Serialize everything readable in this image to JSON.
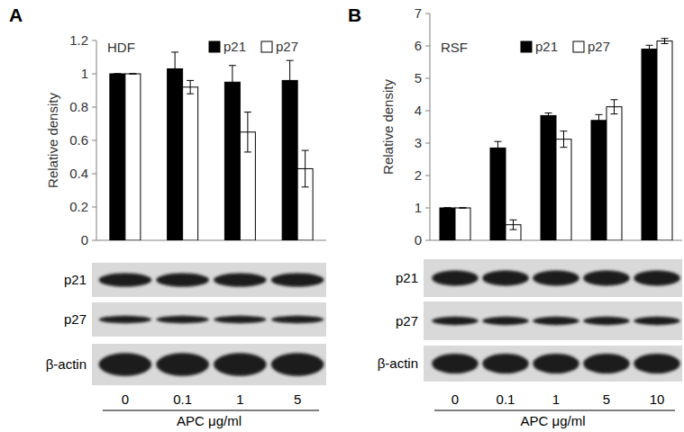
{
  "chart_data": [
    {
      "type": "bar",
      "panel": "A",
      "title": "HDF",
      "y_label": "Relative density",
      "x_label": "APC μg/ml",
      "categories": [
        "0",
        "0.1",
        "1",
        "5"
      ],
      "series": [
        {
          "name": "p21",
          "color": "#000000",
          "values": [
            1,
            1.03,
            0.95,
            0.96
          ],
          "errors": [
            0,
            0.1,
            0.1,
            0.12
          ]
        },
        {
          "name": "p27",
          "color": "#ffffff",
          "values": [
            1,
            0.92,
            0.65,
            0.43
          ],
          "errors": [
            0,
            0.04,
            0.12,
            0.11
          ]
        }
      ],
      "ylim": [
        0,
        1.2
      ],
      "yticks": [
        0,
        0.2,
        0.4,
        0.6,
        0.8,
        1,
        1.2
      ],
      "blot_rows": [
        "p21",
        "p27",
        "β-actin"
      ],
      "legend": "top-right"
    },
    {
      "type": "bar",
      "panel": "B",
      "title": "RSF",
      "y_label": "Relative density",
      "x_label": "APC μg/ml",
      "categories": [
        "0",
        "0.1",
        "1",
        "5",
        "10"
      ],
      "series": [
        {
          "name": "p21",
          "color": "#000000",
          "values": [
            1,
            2.85,
            3.85,
            3.7,
            5.9
          ],
          "errors": [
            0,
            0.2,
            0.08,
            0.18,
            0.12
          ]
        },
        {
          "name": "p27",
          "color": "#ffffff",
          "values": [
            1,
            0.48,
            3.12,
            4.12,
            6.15
          ],
          "errors": [
            0,
            0.15,
            0.25,
            0.22,
            0.08
          ]
        }
      ],
      "ylim": [
        0,
        7
      ],
      "yticks": [
        0,
        1,
        2,
        3,
        4,
        5,
        6,
        7
      ],
      "blot_rows": [
        "p21",
        "p27",
        "β-actin"
      ],
      "legend": "top-right"
    }
  ]
}
